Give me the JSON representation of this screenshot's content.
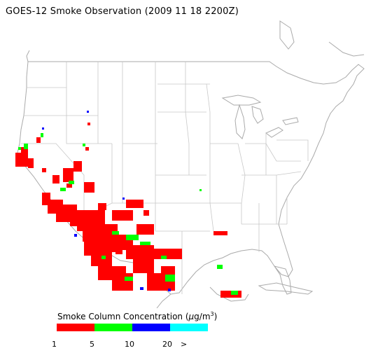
{
  "title": "GOES-12 Smoke Observation (2009 11 18  2200Z)",
  "legend": {
    "title_prefix": "Smoke Column Concentration (",
    "title_unit_mu": "μ",
    "title_unit_rest": "g/m",
    "title_unit_sup": "3",
    "title_suffix": ")",
    "bins": [
      {
        "label": "1",
        "color": "#ff0000",
        "range": "1-5"
      },
      {
        "label": "5",
        "color": "#00ff00",
        "range": "5-10"
      },
      {
        "label": "10",
        "color": "#0000ff",
        "range": "10-20"
      },
      {
        "label": "20",
        "color": "#00ffff",
        "range": ">20"
      }
    ],
    "tick_labels": [
      "1",
      "5",
      "10",
      "20",
      ">"
    ]
  },
  "colors": {
    "background": "#ffffff",
    "boundary": "#c8c8c8",
    "coast": "#aaaaaa"
  },
  "map": {
    "region": "Contiguous United States",
    "smoke_regions": [
      {
        "area": "Northern California coast",
        "level": "1-5"
      },
      {
        "area": "Central/Southern California",
        "level": "1-5"
      },
      {
        "area": "Arizona / New Mexico",
        "level": "1-5"
      },
      {
        "area": "Texas",
        "level": "1-5"
      },
      {
        "area": "South Texas / Gulf coast",
        "level": "1-5"
      },
      {
        "area": "Scattered Great Basin pixels",
        "level": "5-10"
      },
      {
        "area": "Isolated high-concentration pixels",
        "level": "10-20"
      }
    ]
  }
}
